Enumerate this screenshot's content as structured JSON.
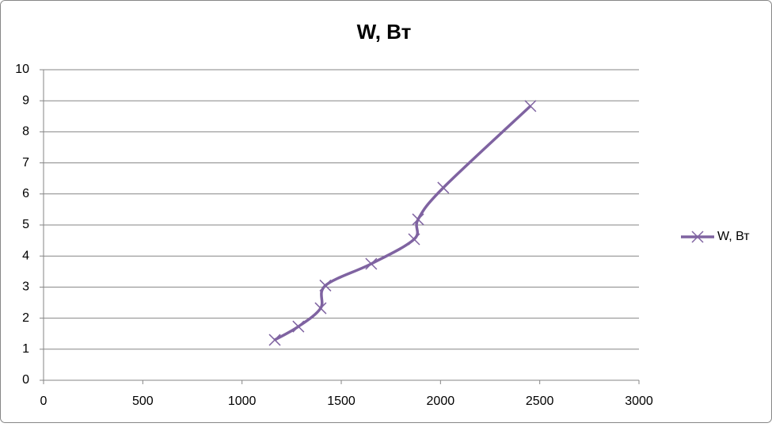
{
  "chart_data": {
    "type": "line",
    "title": "W, Вт",
    "x": [
      1165,
      1284,
      1396,
      1420,
      1651,
      1867,
      1887,
      2014,
      2453
    ],
    "series": [
      {
        "name": "W, Вт",
        "color": "#7f63a1",
        "values": [
          1.3,
          1.73,
          2.32,
          3.05,
          3.75,
          4.54,
          5.18,
          6.2,
          8.83
        ]
      }
    ],
    "xlim": [
      0,
      3000
    ],
    "xticks": [
      0,
      500,
      1000,
      1500,
      2000,
      2500,
      3000
    ],
    "ylim": [
      0,
      10
    ],
    "yticks": [
      0,
      1,
      2,
      3,
      4,
      5,
      6,
      7,
      8,
      9,
      10
    ],
    "grid": true,
    "smooth": true,
    "marker": "x",
    "legend": "right"
  }
}
